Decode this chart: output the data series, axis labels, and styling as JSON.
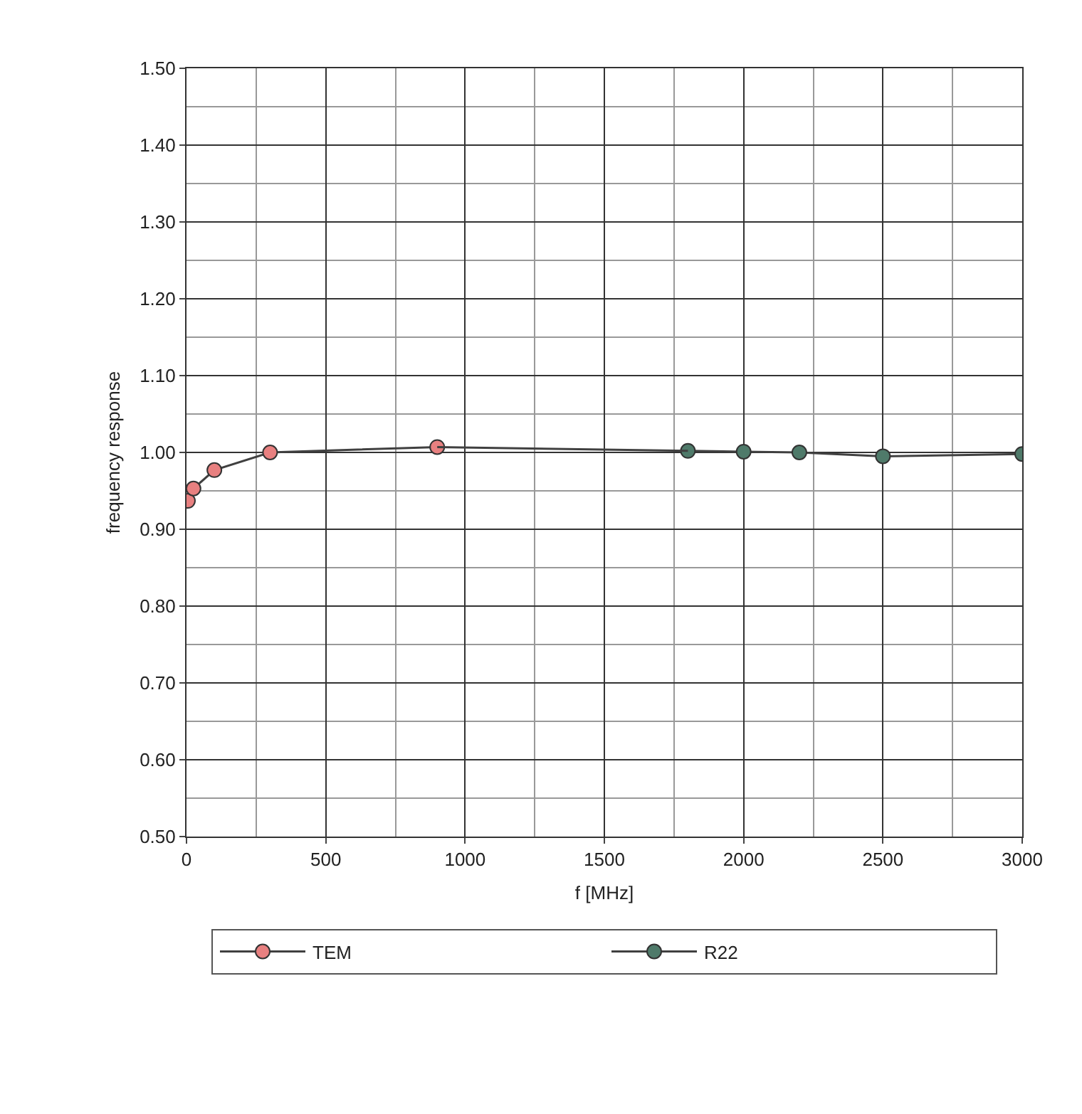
{
  "chart_data": {
    "type": "line",
    "xlabel": "f [MHz]",
    "ylabel": "frequency response",
    "xlim": [
      0,
      3000
    ],
    "xticks": [
      0,
      500,
      1000,
      1500,
      2000,
      2500,
      3000
    ],
    "ylim": [
      0.5,
      1.5
    ],
    "yticks": [
      {
        "value": 0.5,
        "label": "0.50"
      },
      {
        "value": 0.6,
        "label": "0.60"
      },
      {
        "value": 0.7,
        "label": "0.70"
      },
      {
        "value": 0.8,
        "label": "0.80"
      },
      {
        "value": 0.9,
        "label": "0.90"
      },
      {
        "value": 1.0,
        "label": "1.00"
      },
      {
        "value": 1.1,
        "label": "1.10"
      },
      {
        "value": 1.2,
        "label": "1.20"
      },
      {
        "value": 1.3,
        "label": "1.30"
      },
      {
        "value": 1.4,
        "label": "1.40"
      },
      {
        "value": 1.5,
        "label": "1.50"
      }
    ],
    "grid": true,
    "legend": "bottom",
    "marker": "circle",
    "line_style": "solid",
    "series": [
      {
        "name": "TEM",
        "color": "#e88080",
        "x": [
          5,
          25,
          100,
          300,
          900
        ],
        "values": [
          0.937,
          0.953,
          0.977,
          1.0,
          1.007
        ]
      },
      {
        "name": "R22",
        "color": "#4f7a6a",
        "x": [
          1800,
          2000,
          2200,
          2500,
          3000
        ],
        "values": [
          1.002,
          1.001,
          1.0,
          0.995,
          0.998
        ]
      },
      {
        "color": "#404040",
        "marker": "none",
        "x": [
          900,
          1800
        ],
        "values": [
          1.007,
          1.002
        ]
      }
    ]
  }
}
